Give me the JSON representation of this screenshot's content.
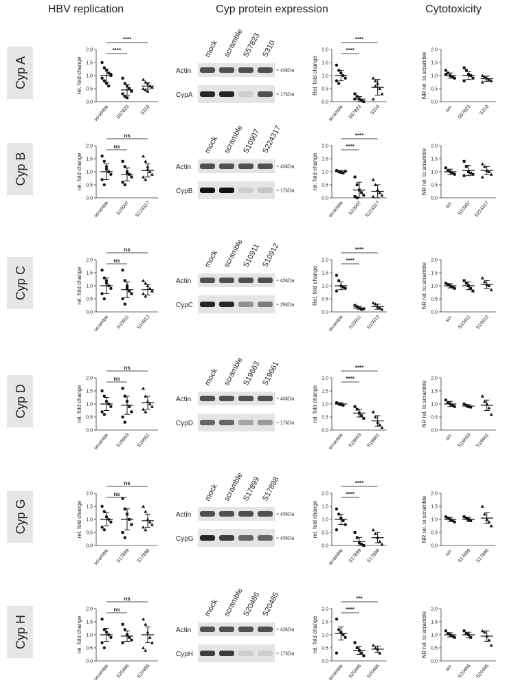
{
  "headers": [
    "HBV replication",
    "Cyp protein expression",
    "Cytotoxicity"
  ],
  "ylim": [
    0,
    2
  ],
  "yticks": [
    {
      "value": 0,
      "label": "0.0"
    },
    {
      "value": 0.5,
      "label": "0.5"
    },
    {
      "value": 1,
      "label": "1.0"
    },
    {
      "value": 1.5,
      "label": "1.5"
    },
    {
      "value": 2,
      "label": "2.0"
    }
  ],
  "rows": [
    {
      "label": "Cyp A",
      "hbv": {
        "y_label": "rel. fold change",
        "categories": [
          "scramble",
          "S57823",
          "S310"
        ],
        "significance": [
          "****",
          "****"
        ],
        "means": [
          1.0,
          0.45,
          0.6
        ],
        "sds": [
          0.25,
          0.2,
          0.12
        ],
        "points": [
          [
            1.5,
            1.3,
            1.2,
            1.1,
            1.0,
            0.9,
            0.8,
            0.7,
            0.6,
            1.05
          ],
          [
            0.9,
            0.7,
            0.6,
            0.5,
            0.4,
            0.3,
            0.2,
            0.15
          ],
          [
            0.85,
            0.75,
            0.7,
            0.6,
            0.55,
            0.5,
            0.45,
            0.4
          ]
        ]
      },
      "blot": {
        "lanes": [
          "mock",
          "scramble",
          "S57823",
          "S310"
        ],
        "bands": [
          {
            "label": "Actin",
            "kda": "43kDa",
            "levels": [
              0.7,
              0.7,
              0.7,
              0.7
            ]
          },
          {
            "label": "CypA",
            "kda": "17kDa",
            "levels": [
              0.9,
              0.9,
              0.1,
              0.7
            ]
          }
        ]
      },
      "expression": {
        "y_label": "Rel. fold change",
        "categories": [
          "scramble",
          "S57823",
          "S310"
        ],
        "significance": [
          "****",
          "****"
        ],
        "means": [
          1.0,
          0.1,
          0.55
        ],
        "sds": [
          0.2,
          0.1,
          0.3
        ],
        "points": [
          [
            1.4,
            1.2,
            1.1,
            1.0,
            0.9,
            0.8,
            0.7
          ],
          [
            0.3,
            0.2,
            0.1,
            0.05,
            0.0,
            0.1
          ],
          [
            0.9,
            0.8,
            0.7,
            0.5,
            0.3,
            0.1,
            0.6
          ]
        ]
      },
      "cytotoxicity": {
        "y_label": "NR rel. to scramble",
        "categories": [
          "scr.",
          "S57823",
          "S310"
        ],
        "means": [
          1.0,
          1.0,
          0.88
        ],
        "sds": [
          0.1,
          0.15,
          0.1
        ],
        "points": [
          [
            1.2,
            1.1,
            1.0,
            0.95,
            0.9,
            1.05
          ],
          [
            1.3,
            1.2,
            1.05,
            1.0,
            0.9,
            0.8
          ],
          [
            1.0,
            0.95,
            0.9,
            0.85,
            0.8,
            0.75
          ]
        ]
      }
    },
    {
      "label": "Cyp B",
      "hbv": {
        "y_label": "rel. fold change",
        "categories": [
          "scramble",
          "S10907",
          "S224317"
        ],
        "significance": [
          "ns",
          "ns"
        ],
        "means": [
          1.0,
          0.9,
          1.05
        ],
        "sds": [
          0.3,
          0.25,
          0.25
        ],
        "points": [
          [
            1.6,
            1.4,
            1.2,
            1.0,
            0.9,
            0.7,
            0.5,
            1.1
          ],
          [
            1.4,
            1.2,
            1.0,
            0.9,
            0.8,
            0.6,
            0.5,
            0.95
          ],
          [
            1.6,
            1.4,
            1.2,
            1.0,
            0.9,
            0.8,
            0.7,
            1.1
          ]
        ]
      },
      "blot": {
        "lanes": [
          "mock",
          "scramble",
          "S10907",
          "S224317"
        ],
        "bands": [
          {
            "label": "Actin",
            "kda": "43kDa",
            "levels": [
              0.7,
              0.7,
              0.7,
              0.7
            ]
          },
          {
            "label": "CypB",
            "kda": "17kDa",
            "levels": [
              1,
              1,
              0.1,
              0.15
            ]
          }
        ]
      },
      "expression": {
        "y_label": "rel. fold change",
        "categories": [
          "scramble",
          "S10907",
          "S224317"
        ],
        "significance": [
          "****",
          "****"
        ],
        "means": [
          1.0,
          0.3,
          0.25
        ],
        "sds": [
          0.05,
          0.3,
          0.25
        ],
        "points": [
          [
            1.05,
            1.0,
            0.98,
            0.95,
            1.02
          ],
          [
            0.8,
            0.5,
            0.3,
            0.2,
            0.1,
            0.05,
            0.0
          ],
          [
            0.7,
            0.5,
            0.3,
            0.2,
            0.1,
            0.05
          ]
        ]
      },
      "cytotoxicity": {
        "y_label": "NR rel. to scramble",
        "categories": [
          "scr.",
          "S10907",
          "S224317"
        ],
        "means": [
          1.0,
          1.05,
          1.05
        ],
        "sds": [
          0.1,
          0.2,
          0.15
        ],
        "points": [
          [
            1.15,
            1.05,
            1.0,
            0.95,
            0.9
          ],
          [
            1.4,
            1.2,
            1.0,
            0.95,
            0.9,
            0.85
          ],
          [
            1.3,
            1.2,
            1.05,
            1.0,
            0.9,
            0.8
          ]
        ]
      }
    },
    {
      "label": "Cyp C",
      "hbv": {
        "y_label": "rel. fold change",
        "categories": [
          "scramble",
          "S10911",
          "S10912"
        ],
        "significance": [
          "ns",
          "ns"
        ],
        "means": [
          1.0,
          0.85,
          0.85
        ],
        "sds": [
          0.3,
          0.3,
          0.2
        ],
        "points": [
          [
            1.6,
            1.3,
            1.2,
            1.0,
            0.9,
            0.7,
            0.5,
            1.1
          ],
          [
            1.6,
            1.2,
            1.0,
            0.8,
            0.7,
            0.5,
            0.3,
            0.9
          ],
          [
            1.2,
            1.1,
            1.0,
            0.9,
            0.8,
            0.7,
            0.6
          ]
        ]
      },
      "blot": {
        "lanes": [
          "mock",
          "scramble",
          "S10911",
          "S10912"
        ],
        "bands": [
          {
            "label": "Actin",
            "kda": "43kDa",
            "levels": [
              0.7,
              0.7,
              0.7,
              0.7
            ]
          },
          {
            "label": "CypC",
            "kda": "26kDa",
            "levels": [
              0.9,
              0.9,
              0.4,
              0.5
            ]
          }
        ]
      },
      "expression": {
        "y_label": "Rel. fold change",
        "categories": [
          "scramble",
          "S10911",
          "S10912"
        ],
        "significance": [
          "****",
          "****"
        ],
        "means": [
          1.0,
          0.15,
          0.2
        ],
        "sds": [
          0.15,
          0.05,
          0.1
        ],
        "points": [
          [
            1.4,
            1.2,
            1.0,
            0.95,
            0.9,
            0.8
          ],
          [
            0.25,
            0.2,
            0.15,
            0.1,
            0.12
          ],
          [
            0.35,
            0.3,
            0.2,
            0.15,
            0.1
          ]
        ]
      },
      "cytotoxicity": {
        "y_label": "NR rel. to scramble",
        "categories": [
          "scr.",
          "S10911",
          "S10912"
        ],
        "means": [
          1.0,
          1.0,
          1.05
        ],
        "sds": [
          0.08,
          0.15,
          0.15
        ],
        "points": [
          [
            1.1,
            1.05,
            1.0,
            0.95,
            0.9
          ],
          [
            1.2,
            1.1,
            1.0,
            0.9,
            0.8
          ],
          [
            1.3,
            1.15,
            1.05,
            1.0,
            0.85
          ]
        ]
      }
    },
    {
      "label": "Cyp D",
      "hbv": {
        "y_label": "rel. fold change",
        "categories": [
          "scramble",
          "S19663",
          "S19661"
        ],
        "significance": [
          "ns",
          "ns"
        ],
        "means": [
          1.0,
          0.95,
          1.05
        ],
        "sds": [
          0.25,
          0.35,
          0.25
        ],
        "points": [
          [
            1.5,
            1.3,
            1.1,
            1.0,
            0.9,
            0.7,
            0.6
          ],
          [
            1.6,
            1.3,
            1.1,
            0.9,
            0.7,
            0.5,
            0.3
          ],
          [
            1.6,
            1.3,
            1.1,
            1.0,
            0.9,
            0.8,
            0.7
          ]
        ]
      },
      "blot": {
        "lanes": [
          "mock",
          "scramble",
          "S19663",
          "S19661"
        ],
        "bands": [
          {
            "label": "Actin",
            "kda": "43kDa",
            "levels": [
              0.7,
              0.7,
              0.7,
              0.7
            ]
          },
          {
            "label": "CypD",
            "kda": "17kDa",
            "levels": [
              0.6,
              0.6,
              0.3,
              0.35
            ]
          }
        ]
      },
      "expression": {
        "y_label": "rel. fold change",
        "categories": [
          "scramble",
          "S19663",
          "S19661"
        ],
        "significance": [
          "****",
          "****"
        ],
        "means": [
          1.0,
          0.65,
          0.35
        ],
        "sds": [
          0.05,
          0.15,
          0.2
        ],
        "points": [
          [
            1.05,
            1.0,
            0.98,
            0.95
          ],
          [
            0.9,
            0.8,
            0.65,
            0.55,
            0.45
          ],
          [
            0.7,
            0.5,
            0.3,
            0.2,
            0.1
          ]
        ]
      },
      "cytotoxicity": {
        "y_label": "NR rel. to scramble",
        "categories": [
          "scr.",
          "S19663",
          "S19661"
        ],
        "means": [
          1.0,
          0.92,
          0.95
        ],
        "sds": [
          0.1,
          0.05,
          0.2
        ],
        "points": [
          [
            1.15,
            1.05,
            1.0,
            0.95,
            0.9
          ],
          [
            1.0,
            0.95,
            0.9,
            0.88
          ],
          [
            1.3,
            1.1,
            1.0,
            0.85,
            0.6
          ]
        ]
      }
    },
    {
      "label": "Cyp G",
      "hbv": {
        "y_label": "rel. fold change",
        "categories": [
          "scramble",
          "S17899",
          "S17898"
        ],
        "significance": [
          "ns",
          "ns"
        ],
        "means": [
          1.0,
          1.0,
          0.95
        ],
        "sds": [
          0.25,
          0.4,
          0.25
        ],
        "points": [
          [
            1.5,
            1.3,
            1.1,
            1.0,
            0.9,
            0.7,
            0.6
          ],
          [
            1.8,
            1.4,
            1.2,
            1.0,
            0.8,
            0.5,
            0.3
          ],
          [
            1.5,
            1.3,
            1.0,
            0.9,
            0.8,
            0.7,
            0.6
          ]
        ]
      },
      "blot": {
        "lanes": [
          "mock",
          "scramble",
          "S17899",
          "S17898"
        ],
        "bands": [
          {
            "label": "Actin",
            "kda": "43kDa",
            "levels": [
              0.7,
              0.7,
              0.7,
              0.7
            ]
          },
          {
            "label": "CypG",
            "kda": "43kDa",
            "levels": [
              0.9,
              0.8,
              0.6,
              0.6
            ]
          }
        ]
      },
      "expression": {
        "y_label": "rel. fold change",
        "categories": [
          "scramble",
          "S17899",
          "S17898"
        ],
        "significance": [
          "****",
          "****"
        ],
        "means": [
          1.0,
          0.15,
          0.3
        ],
        "sds": [
          0.2,
          0.15,
          0.2
        ],
        "points": [
          [
            1.4,
            1.2,
            1.05,
            0.95,
            0.8,
            0.6
          ],
          [
            0.5,
            0.3,
            0.1,
            0.05,
            0.0
          ],
          [
            0.6,
            0.45,
            0.3,
            0.15,
            0.05
          ]
        ]
      },
      "cytotoxicity": {
        "y_label": "NR rel. to scramble",
        "categories": [
          "scr.",
          "S17899",
          "S17898"
        ],
        "means": [
          1.0,
          1.0,
          1.05
        ],
        "sds": [
          0.08,
          0.08,
          0.2
        ],
        "points": [
          [
            1.1,
            1.05,
            1.0,
            0.95,
            0.9
          ],
          [
            1.1,
            1.05,
            1.0,
            0.95
          ],
          [
            1.5,
            1.2,
            1.0,
            0.9,
            0.75
          ]
        ]
      }
    },
    {
      "label": "Cyp H",
      "hbv": {
        "y_label": "rel. fold change",
        "categories": [
          "scramble",
          "S20486",
          "S20485"
        ],
        "significance": [
          "ns",
          "ns"
        ],
        "means": [
          1.0,
          0.95,
          1.0
        ],
        "sds": [
          0.25,
          0.2,
          0.3
        ],
        "points": [
          [
            1.6,
            1.2,
            1.1,
            1.0,
            0.9,
            0.7,
            0.5
          ],
          [
            1.4,
            1.2,
            1.0,
            0.9,
            0.8,
            0.7
          ],
          [
            1.6,
            1.4,
            1.1,
            0.9,
            0.7,
            0.5,
            0.4
          ]
        ]
      },
      "blot": {
        "lanes": [
          "mock",
          "scramble",
          "S20486",
          "S20485"
        ],
        "bands": [
          {
            "label": "Actin",
            "kda": "43kDa",
            "levels": [
              0.7,
              0.7,
              0.7,
              0.7
            ]
          },
          {
            "label": "CypH",
            "kda": "17kDa",
            "levels": [
              0.8,
              0.8,
              0.1,
              0.1
            ]
          }
        ]
      },
      "expression": {
        "y_label": "rel. fold change",
        "categories": [
          "scramble",
          "S20486",
          "S20485"
        ],
        "significance": [
          "****",
          "***"
        ],
        "means": [
          1.05,
          0.4,
          0.45
        ],
        "sds": [
          0.25,
          0.15,
          0.12
        ],
        "points": [
          [
            1.6,
            1.2,
            1.1,
            1.0,
            0.9,
            0.3
          ],
          [
            0.7,
            0.5,
            0.4,
            0.3,
            0.2
          ],
          [
            0.6,
            0.5,
            0.45,
            0.3
          ]
        ]
      },
      "cytotoxicity": {
        "y_label": "NR rel. to scramble",
        "categories": [
          "scr.",
          "S20486",
          "S20485"
        ],
        "means": [
          1.0,
          1.0,
          0.95
        ],
        "sds": [
          0.08,
          0.1,
          0.2
        ],
        "points": [
          [
            1.15,
            1.05,
            1.0,
            0.95,
            0.9
          ],
          [
            1.15,
            1.05,
            1.0,
            0.9
          ],
          [
            1.15,
            1.1,
            0.95,
            0.8,
            0.6
          ]
        ]
      }
    }
  ]
}
